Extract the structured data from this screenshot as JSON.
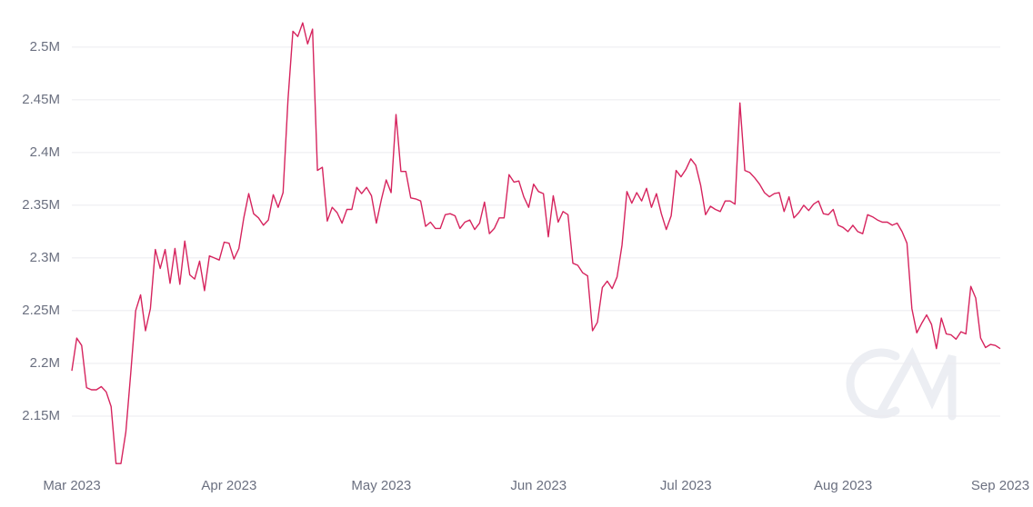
{
  "chart_data": {
    "type": "line",
    "series": [
      {
        "color": "#d6245e",
        "values": [
          2193000,
          2224000,
          2217000,
          2177000,
          2175000,
          2175000,
          2178000,
          2173000,
          2159000,
          2105000,
          2105000,
          2135000,
          2191000,
          2250000,
          2265000,
          2231000,
          2252000,
          2308000,
          2290000,
          2308000,
          2276000,
          2309000,
          2275000,
          2316000,
          2284000,
          2280000,
          2297000,
          2269000,
          2302000,
          2300000,
          2298000,
          2315000,
          2314000,
          2299000,
          2309000,
          2338000,
          2361000,
          2342000,
          2338000,
          2331000,
          2336000,
          2360000,
          2348000,
          2362000,
          2450000,
          2515000,
          2510000,
          2523000,
          2503000,
          2517000,
          2383000,
          2386000,
          2335000,
          2348000,
          2343000,
          2333000,
          2346000,
          2346000,
          2367000,
          2361000,
          2367000,
          2359000,
          2333000,
          2355000,
          2374000,
          2362000,
          2436000,
          2382000,
          2382000,
          2357000,
          2356000,
          2354000,
          2330000,
          2334000,
          2328000,
          2328000,
          2341000,
          2342000,
          2340000,
          2328000,
          2334000,
          2336000,
          2327000,
          2333000,
          2353000,
          2323000,
          2328000,
          2338000,
          2338000,
          2379000,
          2372000,
          2373000,
          2358000,
          2348000,
          2370000,
          2363000,
          2361000,
          2320000,
          2359000,
          2334000,
          2344000,
          2341000,
          2295000,
          2293000,
          2286000,
          2283000,
          2231000,
          2239000,
          2272000,
          2278000,
          2271000,
          2282000,
          2312000,
          2363000,
          2352000,
          2362000,
          2354000,
          2366000,
          2348000,
          2361000,
          2342000,
          2327000,
          2340000,
          2383000,
          2377000,
          2384000,
          2394000,
          2388000,
          2369000,
          2341000,
          2349000,
          2346000,
          2344000,
          2354000,
          2354000,
          2351000,
          2447000,
          2383000,
          2381000,
          2376000,
          2370000,
          2362000,
          2358000,
          2361000,
          2362000,
          2344000,
          2358000,
          2338000,
          2343000,
          2350000,
          2345000,
          2351000,
          2354000,
          2342000,
          2341000,
          2346000,
          2331000,
          2329000,
          2325000,
          2331000,
          2325000,
          2323000,
          2341000,
          2339000,
          2336000,
          2334000,
          2334000,
          2331000,
          2333000,
          2325000,
          2314000,
          2252000,
          2229000,
          2238000,
          2246000,
          2237000,
          2214000,
          2243000,
          2228000,
          2227000,
          2223000,
          2230000,
          2228000,
          2273000,
          2262000,
          2224000,
          2215000,
          2218000,
          2217000,
          2214000
        ]
      }
    ],
    "xlim": [
      0,
      189
    ],
    "xticks": [
      {
        "value": 0,
        "label": "Mar 2023"
      },
      {
        "value": 32,
        "label": "Apr 2023"
      },
      {
        "value": 63,
        "label": "May 2023"
      },
      {
        "value": 95,
        "label": "Jun 2023"
      },
      {
        "value": 125,
        "label": "Jul 2023"
      },
      {
        "value": 157,
        "label": "Aug 2023"
      },
      {
        "value": 189,
        "label": "Sep 2023"
      }
    ],
    "ylim": [
      2100000,
      2530000
    ],
    "yticks": [
      {
        "value": 2150000,
        "label": "2.15M"
      },
      {
        "value": 2200000,
        "label": "2.2M"
      },
      {
        "value": 2250000,
        "label": "2.25M"
      },
      {
        "value": 2300000,
        "label": "2.3M"
      },
      {
        "value": 2350000,
        "label": "2.35M"
      },
      {
        "value": 2400000,
        "label": "2.4M"
      },
      {
        "value": 2450000,
        "label": "2.45M"
      },
      {
        "value": 2500000,
        "label": "2.5M"
      }
    ],
    "grid": true
  }
}
